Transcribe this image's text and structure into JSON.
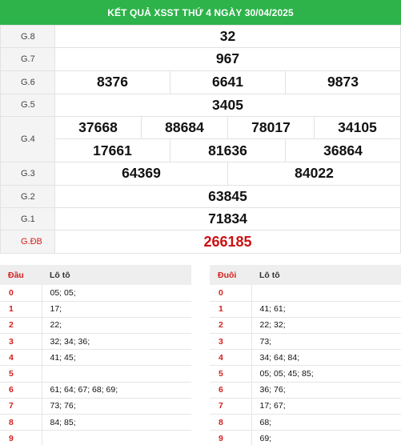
{
  "header": {
    "title": "KẾT QUẢ XSST THỨ 4 NGÀY 30/04/2025"
  },
  "prizes": {
    "g8": {
      "label": "G.8",
      "numbers": [
        "32"
      ]
    },
    "g7": {
      "label": "G.7",
      "numbers": [
        "967"
      ]
    },
    "g6": {
      "label": "G.6",
      "numbers": [
        "8376",
        "6641",
        "9873"
      ]
    },
    "g5": {
      "label": "G.5",
      "numbers": [
        "3405"
      ]
    },
    "g4": {
      "label": "G.4",
      "numbers": [
        "37668",
        "88684",
        "78017",
        "34105",
        "17661",
        "81636",
        "36864"
      ]
    },
    "g3": {
      "label": "G.3",
      "numbers": [
        "64369",
        "84022"
      ]
    },
    "g2": {
      "label": "G.2",
      "numbers": [
        "63845"
      ]
    },
    "g1": {
      "label": "G.1",
      "numbers": [
        "71834"
      ]
    },
    "gdb": {
      "label": "G.ĐB",
      "numbers": [
        "266185"
      ]
    }
  },
  "colors": {
    "header_bg": "#2db34a",
    "special": "#cc1111",
    "label_red": "#d41f1f"
  },
  "loto_head": {
    "key_label": "Đầu",
    "val_label": "Lô tô",
    "rows": [
      {
        "key": "0",
        "val": "05; 05;"
      },
      {
        "key": "1",
        "val": "17;"
      },
      {
        "key": "2",
        "val": "22;"
      },
      {
        "key": "3",
        "val": "32; 34; 36;"
      },
      {
        "key": "4",
        "val": "41; 45;"
      },
      {
        "key": "5",
        "val": ""
      },
      {
        "key": "6",
        "val": "61; 64; 67; 68; 69;"
      },
      {
        "key": "7",
        "val": "73; 76;"
      },
      {
        "key": "8",
        "val": "84; 85;"
      },
      {
        "key": "9",
        "val": ""
      }
    ]
  },
  "loto_tail": {
    "key_label": "Đuôi",
    "val_label": "Lô tô",
    "rows": [
      {
        "key": "0",
        "val": ""
      },
      {
        "key": "1",
        "val": "41; 61;"
      },
      {
        "key": "2",
        "val": "22; 32;"
      },
      {
        "key": "3",
        "val": "73;"
      },
      {
        "key": "4",
        "val": "34; 64; 84;"
      },
      {
        "key": "5",
        "val": "05; 05; 45; 85;"
      },
      {
        "key": "6",
        "val": "36; 76;"
      },
      {
        "key": "7",
        "val": "17; 67;"
      },
      {
        "key": "8",
        "val": "68;"
      },
      {
        "key": "9",
        "val": "69;"
      }
    ]
  }
}
